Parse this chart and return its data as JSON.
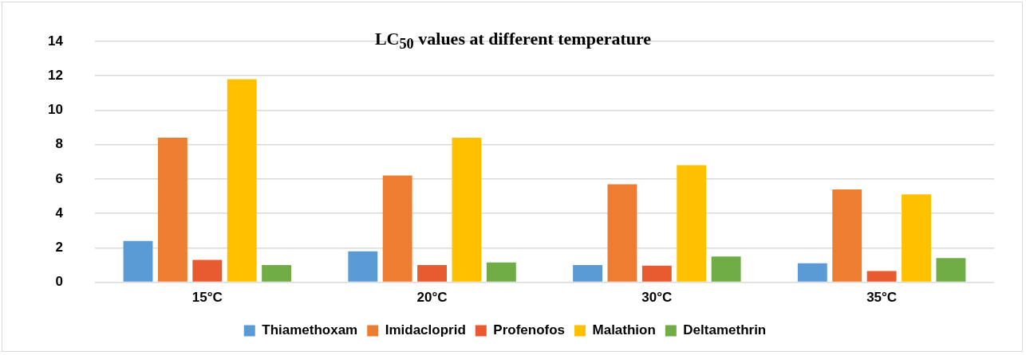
{
  "chart_data": {
    "type": "bar",
    "title": "LC$_{50}$ values at different temperature",
    "categories": [
      "15°C",
      "20°C",
      "30°C",
      "35°C"
    ],
    "series": [
      {
        "name": "Thiamethoxam",
        "color": "#5b9bd5",
        "values": [
          2.4,
          1.8,
          1.0,
          1.1
        ]
      },
      {
        "name": "Imidacloprid",
        "color": "#ed7d31",
        "values": [
          8.4,
          6.2,
          5.7,
          5.4
        ]
      },
      {
        "name": "Profenofos",
        "color": "#e85a30",
        "values": [
          1.3,
          1.0,
          0.97,
          0.65
        ]
      },
      {
        "name": "Malathion",
        "color": "#ffc000",
        "values": [
          11.8,
          8.4,
          6.8,
          5.1
        ]
      },
      {
        "name": "Deltamethrin",
        "color": "#70ad47",
        "values": [
          1.0,
          1.15,
          1.5,
          1.4
        ]
      }
    ],
    "ylim": [
      0,
      14
    ],
    "yticks": [
      0,
      2,
      4,
      6,
      8,
      10,
      12,
      14
    ],
    "grid": "y",
    "legend": "bottom"
  }
}
